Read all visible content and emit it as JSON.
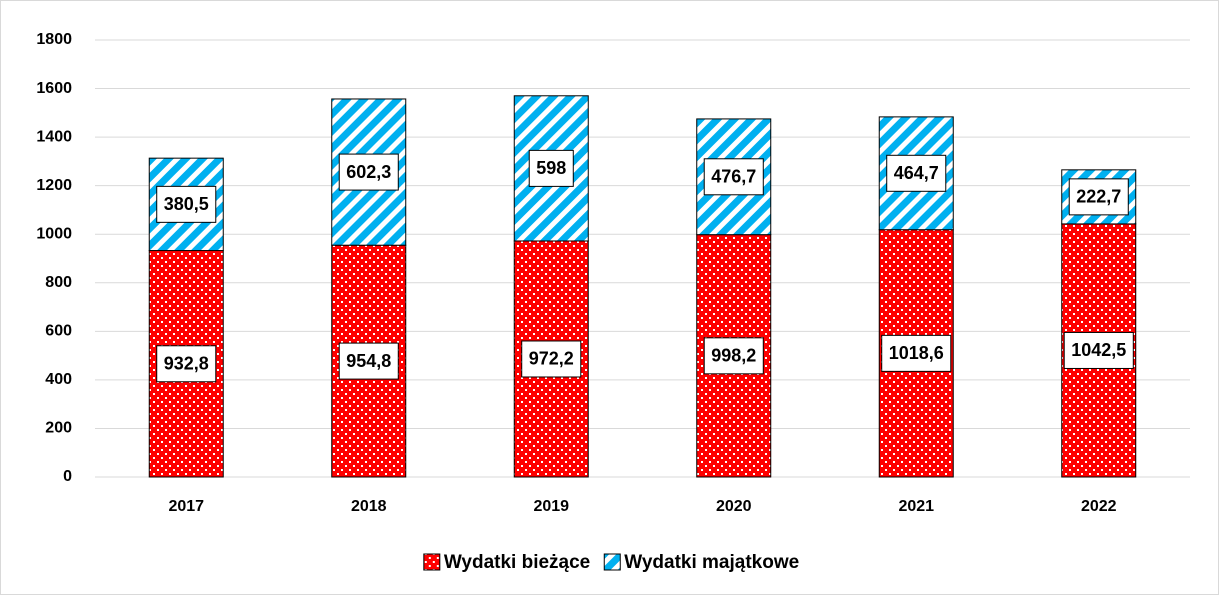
{
  "chart_data": {
    "type": "stacked_bar",
    "categories": [
      "2017",
      "2018",
      "2019",
      "2020",
      "2021",
      "2022"
    ],
    "series": [
      {
        "name": "Wydatki bieżące",
        "color": "#ff0000",
        "values": [
          932.8,
          954.8,
          972.2,
          998.2,
          1018.6,
          1042.5
        ],
        "value_labels": [
          "932,8",
          "954,8",
          "972,2",
          "998,2",
          "1018,6",
          "1042,5"
        ]
      },
      {
        "name": "Wydatki majątkowe",
        "color": "#00b0f0",
        "values": [
          380.5,
          602.3,
          598,
          476.7,
          464.7,
          222.7
        ],
        "value_labels": [
          "380,5",
          "602,3",
          "598",
          "476,7",
          "464,7",
          "222,7"
        ]
      }
    ],
    "ylim": [
      0,
      1800
    ],
    "yticks": [
      0,
      200,
      400,
      600,
      800,
      1000,
      1200,
      1400,
      1600,
      1800
    ],
    "grid": true,
    "legend": "bottom"
  }
}
